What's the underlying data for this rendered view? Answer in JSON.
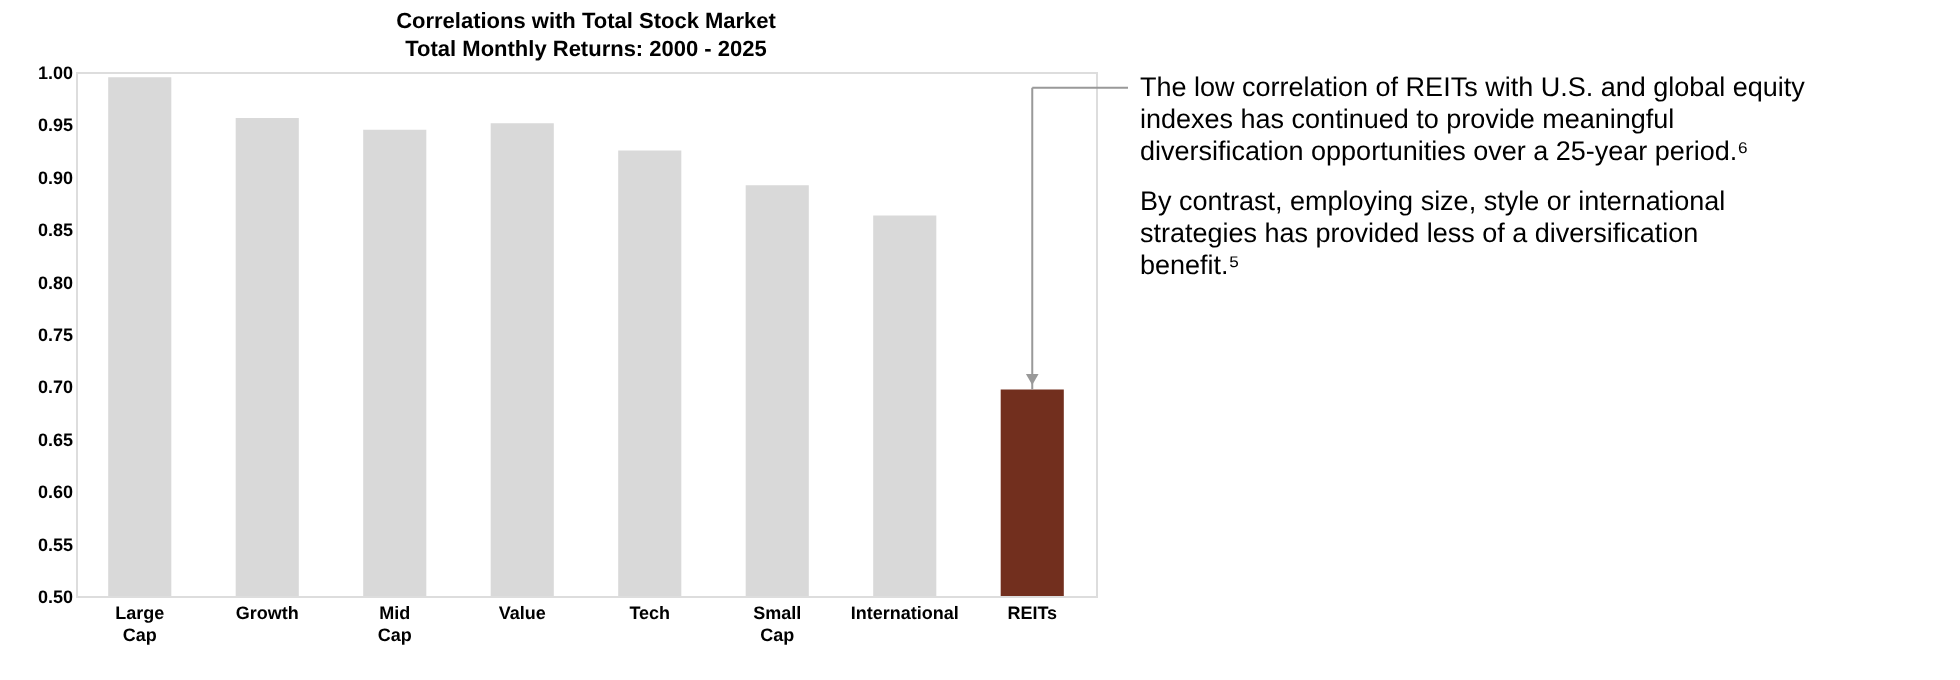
{
  "chart_data": {
    "type": "bar",
    "title": "Correlations with Total Stock Market",
    "subtitle": "Total Monthly Returns: 2000 - 2025",
    "categories": [
      "Large Cap",
      "Growth",
      "Mid Cap",
      "Value",
      "Tech",
      "Small Cap",
      "International",
      "REITs"
    ],
    "values": [
      0.995,
      0.956,
      0.945,
      0.951,
      0.925,
      0.892,
      0.863,
      0.697
    ],
    "colors": [
      "#d9d9d9",
      "#d9d9d9",
      "#d9d9d9",
      "#d9d9d9",
      "#d9d9d9",
      "#d9d9d9",
      "#d9d9d9",
      "#722f1e"
    ],
    "ylim": [
      0.5,
      1.0
    ],
    "yticks": [
      {
        "value": 0.5,
        "label": "0.50"
      },
      0.55,
      {
        "value": 0.6,
        "label": "0.60"
      },
      0.65,
      {
        "value": 0.7,
        "label": "0.70"
      },
      0.75,
      {
        "value": 0.8,
        "label": "0.80"
      },
      0.85,
      {
        "value": 0.9,
        "label": "0.90"
      },
      0.95,
      {
        "value": 1.0,
        "label": "1.00"
      }
    ],
    "grid": false,
    "annotations": [
      "The low correlation of REITs with U.S. and global equity indexes has continued to provide meaningful diversification opportunities over a 25-year period.⁶",
      "By contrast, employing size, style or international strategies has provided less of a diversification benefit.⁵"
    ]
  }
}
